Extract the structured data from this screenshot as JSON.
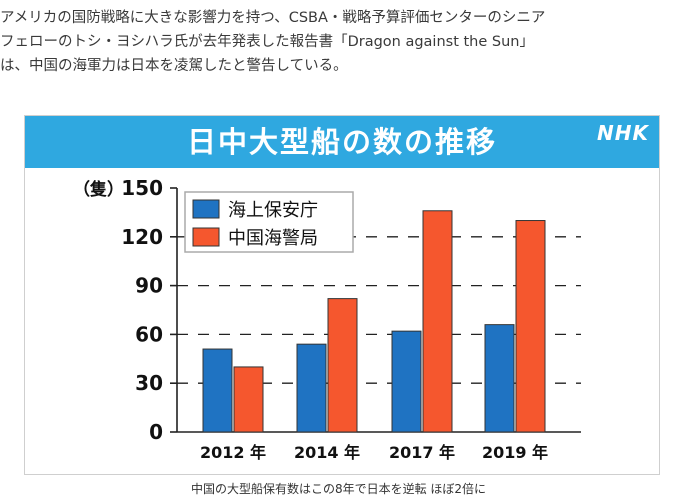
{
  "article": {
    "lines": [
      "アメリカの国防戦略に大きな影響力を持つ、CSBA・戦略予算評価センターのシニア",
      "フェローのトシ・ヨシハラ氏が去年発表した報告書「Dragon against the Sun」",
      "は、中国の海軍力は日本を凌駕したと警告している。"
    ]
  },
  "figure": {
    "logo": "NHK",
    "caption": "中国の大型船保有数はこの8年で日本を逆転 ほぼ2倍に"
  },
  "colors": {
    "header": "#2fa8e0",
    "japan": "#1f73c2",
    "china": "#f5572e"
  },
  "chart_data": {
    "type": "bar",
    "title": "日中大型船の数の推移",
    "ylabel": "（隻）",
    "xlabel": "",
    "categories": [
      "2012 年",
      "2014 年",
      "2017 年",
      "2019 年"
    ],
    "series": [
      {
        "name": "海上保安庁",
        "values": [
          51,
          54,
          62,
          66
        ]
      },
      {
        "name": "中国海警局",
        "values": [
          40,
          82,
          136,
          130
        ]
      }
    ],
    "ylim": [
      0,
      150
    ],
    "yticks": [
      0,
      30,
      60,
      90,
      120,
      150
    ],
    "grid": true,
    "legend": "top-left"
  }
}
